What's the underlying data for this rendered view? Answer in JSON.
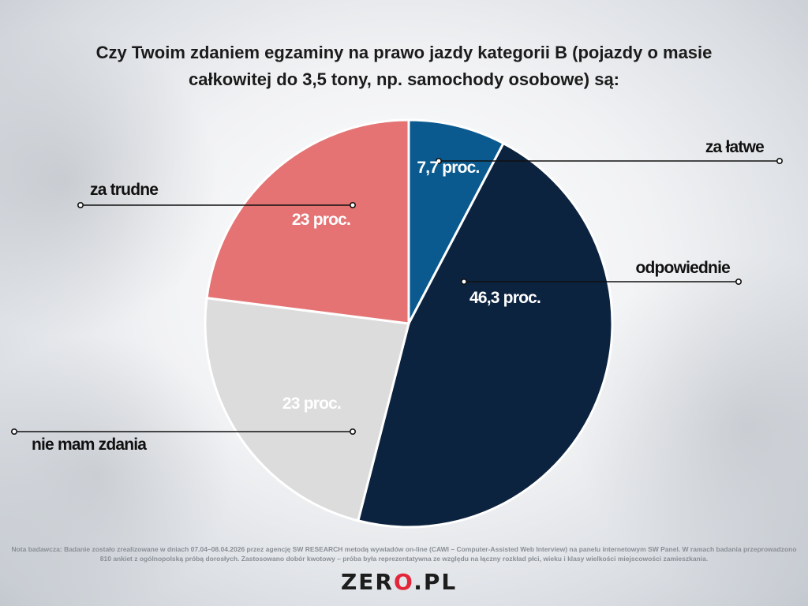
{
  "title_lines": [
    "Czy Twoim zdaniem egzaminy na prawo jazdy kategorii B (pojazdy o masie",
    "całkowitej do 3,5 tony, np. samochody osobowe) są:"
  ],
  "chart_data": {
    "type": "pie",
    "slices": [
      {
        "name": "za łatwe",
        "value": 7.7,
        "label": "7,7 proc.",
        "color": "#0b5a8f",
        "label_color": "#ffffff"
      },
      {
        "name": "odpowiednie",
        "value": 46.3,
        "label": "46,3 proc.",
        "color": "#0c2340",
        "label_color": "#ffffff"
      },
      {
        "name": "nie mam zdania",
        "value": 23,
        "label": "23 proc.",
        "color": "#dcdcdc",
        "label_color": "#ffffff"
      },
      {
        "name": "za trudne",
        "value": 23,
        "label": "23 proc.",
        "color": "#e57373",
        "label_color": "#ffffff"
      }
    ],
    "start_angle": "12 o'clock",
    "direction": "clockwise"
  },
  "note": "Nota badawcza: Badanie zostało zrealizowane w dniach 07.04–08.04.2026 przez agencję SW RESEARCH metodą wywiadów on-line (CAWI – Computer-Assisted Web Interview) na panelu internetowym SW Panel. W ramach badania przeprowadzono 810 ankiet z ogólnopolską próbą dorosłych. Zastosowano dobór kwotowy – próba była reprezentatywna ze względu na łączny rozkład płci, wieku i klasy wielkości miejscowości zamieszkania.",
  "logo": {
    "text_before": "ZER",
    "text_dot": "O",
    "text_after": ".PL",
    "accent_color": "#e3263a"
  }
}
